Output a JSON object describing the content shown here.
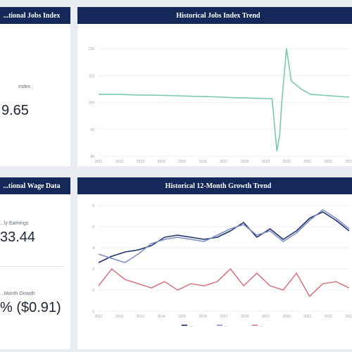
{
  "left_top": {
    "header": "...tional Jobs Index",
    "label": "Index",
    "value": "9.65"
  },
  "left_bottom": {
    "header": "...tional Wage Data",
    "label1": "...ly Earnings",
    "value1": "33.44",
    "label2": "...Month Growth",
    "value2": "% ($0.91)"
  },
  "chart_data": [
    {
      "type": "line",
      "title": "Historical Jobs Index Trend",
      "x": [
        2011,
        2012,
        2013,
        2014,
        2015,
        2016,
        2017,
        2018,
        2019,
        2020,
        2020.25,
        2020.4,
        2020.5,
        2020.75,
        2021,
        2021.5,
        2022,
        2023,
        2024
      ],
      "yticks": [
        80,
        90,
        100,
        110,
        120
      ],
      "ylim": [
        80,
        125
      ],
      "xticks": [
        "2011",
        "2012",
        "2013",
        "2014",
        "2015",
        "2016",
        "2017",
        "2018",
        "2019",
        "2020",
        "2021",
        "2022",
        "2023"
      ],
      "series": [
        {
          "color": "#7cc7b4",
          "values": [
            103,
            103,
            102.8,
            102.7,
            102.5,
            102.3,
            102.1,
            101.8,
            101.6,
            101.4,
            82,
            88,
            100,
            120,
            108,
            105,
            103,
            102.5,
            102
          ]
        }
      ]
    },
    {
      "type": "line",
      "title": "Historical 12-Month Growth Trend",
      "xticks": [
        "2011",
        "2012",
        "2013",
        "2014",
        "2015",
        "2016",
        "2017",
        "2018",
        "2019",
        "2020",
        "2021",
        "2022",
        "2023"
      ],
      "yticks": [
        1,
        2,
        3,
        4,
        5,
        6
      ],
      "ylim": [
        1,
        6
      ],
      "series": [
        {
          "color": "#1f2f6e",
          "values": [
            3.3,
            3.6,
            3.8,
            3.9,
            4.1,
            4.5,
            4.6,
            4.5,
            4.4,
            4.5,
            4.8,
            5.2,
            4.5,
            4.9,
            4.4,
            4.8,
            5.4,
            5.7,
            5.3,
            4.8
          ]
        },
        {
          "color": "#7e8fc5",
          "values": [
            3.7,
            3.5,
            3.3,
            3.7,
            4.2,
            4.4,
            4.5,
            4.4,
            4.3,
            4.6,
            4.9,
            5.1,
            4.6,
            4.8,
            4.3,
            4.7,
            5.3,
            5.8,
            5.4,
            4.9
          ]
        },
        {
          "color": "#d97a82",
          "values": [
            2.2,
            3.0,
            2.5,
            2.3,
            2.1,
            2.4,
            2.0,
            2.3,
            2.2,
            2.4,
            3.0,
            2.2,
            2.8,
            2.2,
            2.0,
            2.8,
            1.7,
            2.3,
            2.4,
            2.1
          ]
        }
      ],
      "legend": [
        "...",
        "...",
        "..."
      ]
    }
  ]
}
